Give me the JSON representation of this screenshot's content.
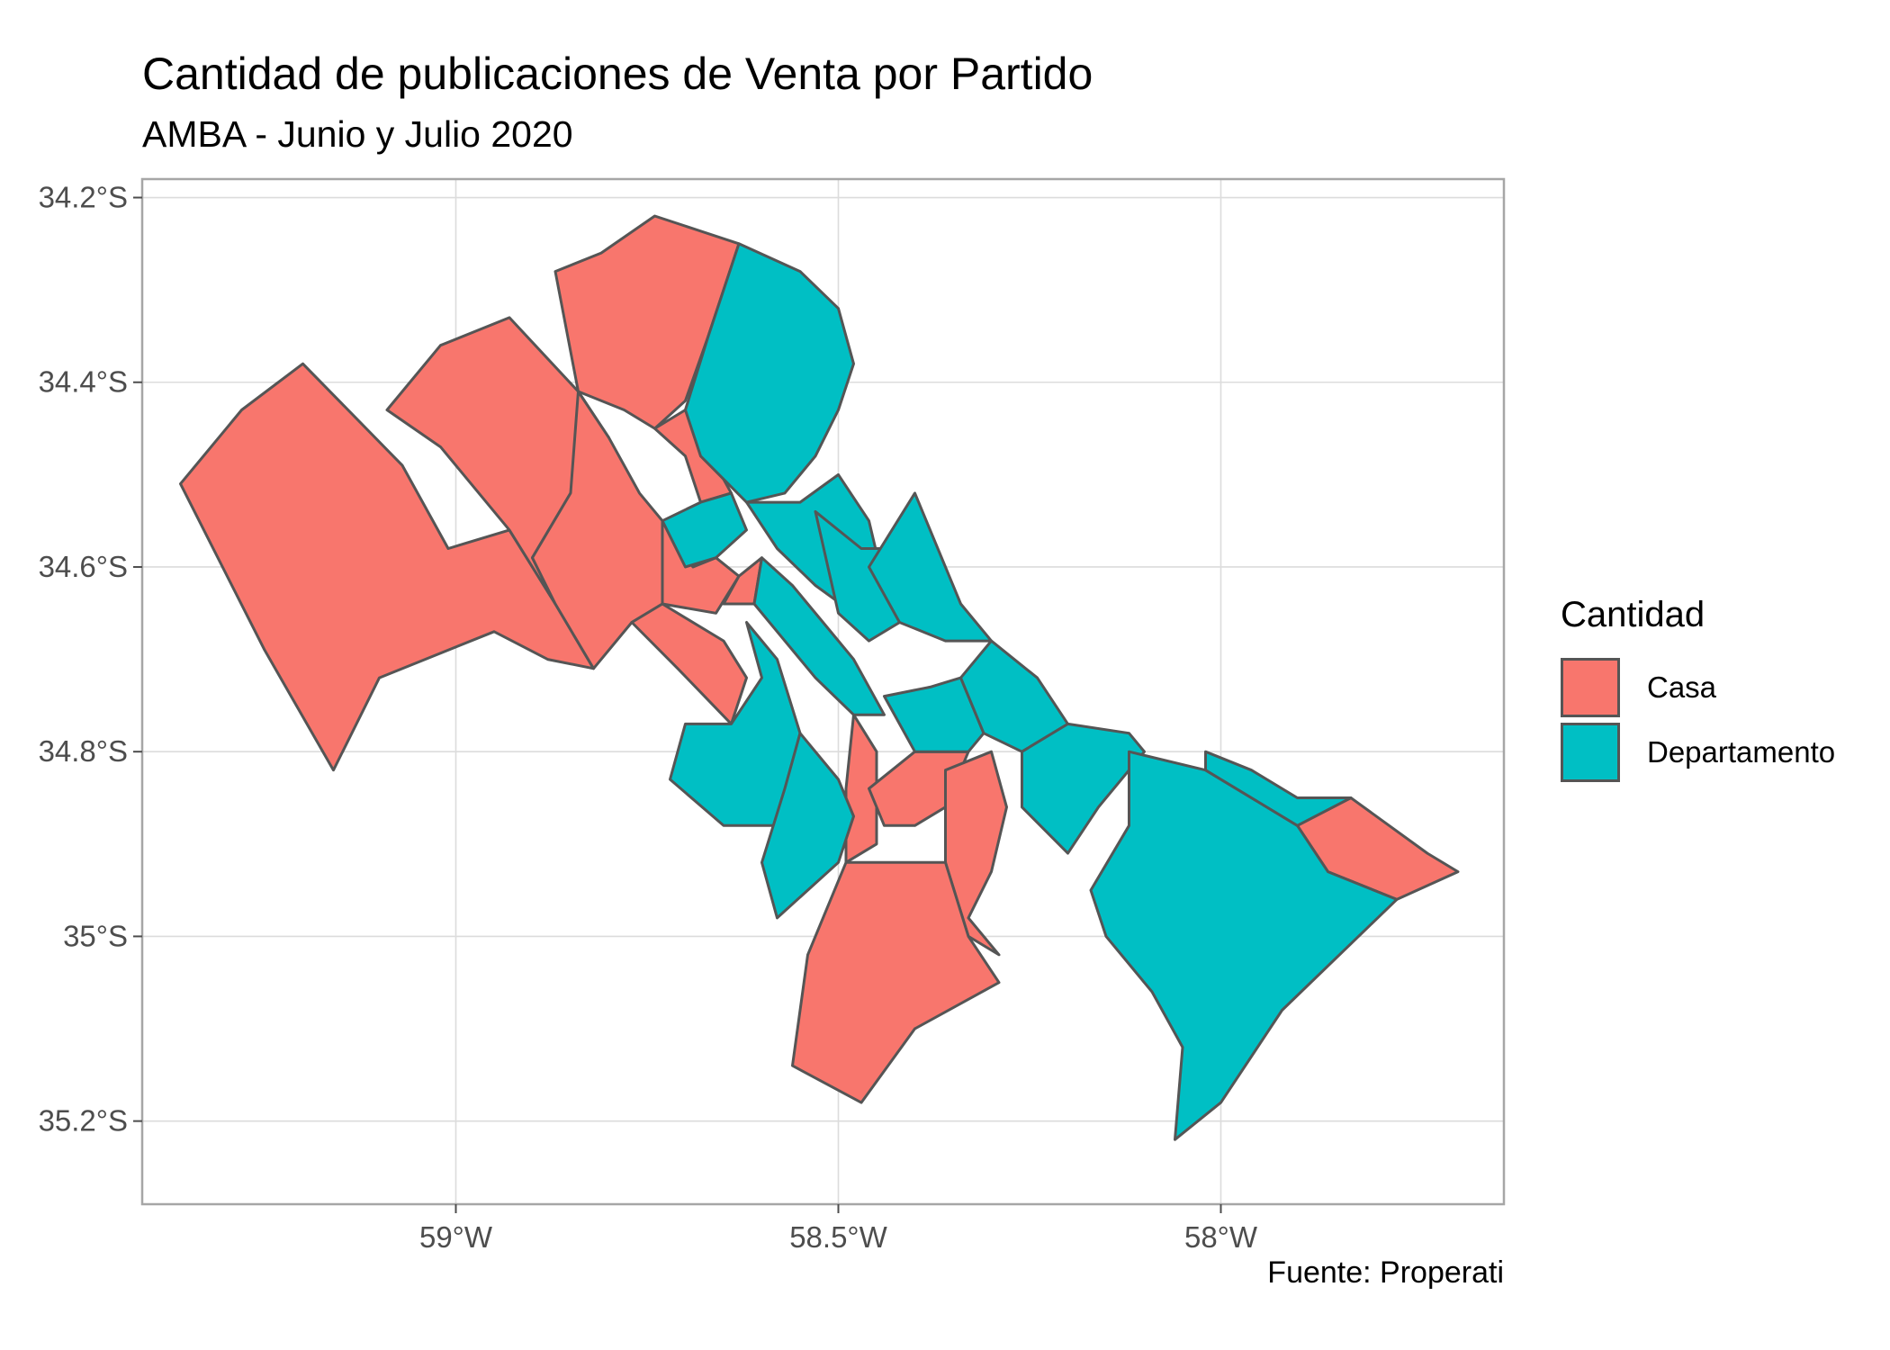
{
  "title": "Cantidad de publicaciones de Venta por Partido",
  "subtitle": "AMBA - Junio y Julio 2020",
  "caption": "Fuente: Properati",
  "axes": {
    "lat_ticks": [
      {
        "value": -34.2,
        "label": "34.2°S"
      },
      {
        "value": -34.4,
        "label": "34.4°S"
      },
      {
        "value": -34.6,
        "label": "34.6°S"
      },
      {
        "value": -34.8,
        "label": "34.8°S"
      },
      {
        "value": -35.0,
        "label": "35°S"
      },
      {
        "value": -35.2,
        "label": "35.2°S"
      }
    ],
    "lon_ticks": [
      {
        "value": -59.0,
        "label": "59°W"
      },
      {
        "value": -58.5,
        "label": "58.5°W"
      },
      {
        "value": -58.0,
        "label": "58°W"
      }
    ],
    "lon_range": [
      -59.41,
      -57.63
    ],
    "lat_range": [
      -35.29,
      -34.18
    ],
    "grid": true
  },
  "legend": {
    "title": "Cantidad",
    "position": "right",
    "items": [
      {
        "key": "Casa",
        "label": "Casa",
        "color": "#F8766D"
      },
      {
        "key": "Departamento",
        "label": "Departamento",
        "color": "#00BFC4"
      }
    ]
  },
  "colors": {
    "Casa": "#F8766D",
    "Departamento": "#00BFC4",
    "border": "#555555",
    "grid": "#dcdcdc",
    "panel_border": "#a6a6a6",
    "tick_text": "#4d4d4d"
  },
  "map_data": {
    "regions": [
      {
        "name": "casa-region",
        "category": "Casa",
        "polygon": [
          [
            -59.2,
            -34.38
          ],
          [
            -59.07,
            -34.49
          ],
          [
            -59.01,
            -34.58
          ],
          [
            -58.93,
            -34.56
          ],
          [
            -58.87,
            -34.64
          ],
          [
            -58.82,
            -34.71
          ],
          [
            -58.88,
            -34.7
          ],
          [
            -58.95,
            -34.67
          ],
          [
            -59.1,
            -34.72
          ],
          [
            -59.16,
            -34.82
          ],
          [
            -59.25,
            -34.69
          ],
          [
            -59.36,
            -34.51
          ],
          [
            -59.28,
            -34.43
          ],
          [
            -59.2,
            -34.38
          ]
        ]
      },
      {
        "name": "casa-region",
        "category": "Casa",
        "polygon": [
          [
            -59.02,
            -34.36
          ],
          [
            -58.93,
            -34.33
          ],
          [
            -58.84,
            -34.41
          ],
          [
            -58.8,
            -34.46
          ],
          [
            -58.85,
            -34.52
          ],
          [
            -58.9,
            -34.59
          ],
          [
            -58.87,
            -34.64
          ],
          [
            -58.93,
            -34.56
          ],
          [
            -59.02,
            -34.47
          ],
          [
            -59.09,
            -34.43
          ],
          [
            -59.02,
            -34.36
          ]
        ]
      },
      {
        "name": "casa-region",
        "category": "Casa",
        "polygon": [
          [
            -58.84,
            -34.41
          ],
          [
            -58.8,
            -34.46
          ],
          [
            -58.76,
            -34.52
          ],
          [
            -58.73,
            -34.55
          ],
          [
            -58.69,
            -34.6
          ],
          [
            -58.73,
            -34.64
          ],
          [
            -58.77,
            -34.66
          ],
          [
            -58.82,
            -34.71
          ],
          [
            -58.87,
            -34.64
          ],
          [
            -58.9,
            -34.59
          ],
          [
            -58.85,
            -34.52
          ],
          [
            -58.84,
            -34.41
          ]
        ]
      },
      {
        "name": "casa-region",
        "category": "Casa",
        "polygon": [
          [
            -58.87,
            -34.28
          ],
          [
            -58.81,
            -34.26
          ],
          [
            -58.74,
            -34.22
          ],
          [
            -58.63,
            -34.25
          ],
          [
            -58.67,
            -34.35
          ],
          [
            -58.7,
            -34.42
          ],
          [
            -58.74,
            -34.45
          ],
          [
            -58.78,
            -34.43
          ],
          [
            -58.84,
            -34.41
          ],
          [
            -58.87,
            -34.28
          ]
        ]
      },
      {
        "name": "casa-region",
        "category": "Casa",
        "polygon": [
          [
            -58.74,
            -34.45
          ],
          [
            -58.7,
            -34.48
          ],
          [
            -58.68,
            -34.53
          ],
          [
            -58.64,
            -34.52
          ],
          [
            -58.7,
            -34.43
          ],
          [
            -58.74,
            -34.45
          ]
        ]
      },
      {
        "name": "casa-region",
        "category": "Casa",
        "polygon": [
          [
            -58.73,
            -34.55
          ],
          [
            -58.69,
            -34.6
          ],
          [
            -58.66,
            -34.59
          ],
          [
            -58.63,
            -34.61
          ],
          [
            -58.66,
            -34.65
          ],
          [
            -58.73,
            -34.64
          ],
          [
            -58.73,
            -34.55
          ]
        ]
      },
      {
        "name": "casa-region",
        "category": "Casa",
        "polygon": [
          [
            -58.77,
            -34.66
          ],
          [
            -58.71,
            -34.71
          ],
          [
            -58.64,
            -34.77
          ],
          [
            -58.62,
            -34.72
          ],
          [
            -58.65,
            -34.68
          ],
          [
            -58.73,
            -34.64
          ],
          [
            -58.77,
            -34.66
          ]
        ]
      },
      {
        "name": "casa-region",
        "category": "Casa",
        "polygon": [
          [
            -58.65,
            -34.64
          ],
          [
            -58.61,
            -34.64
          ],
          [
            -58.6,
            -34.59
          ],
          [
            -58.63,
            -34.61
          ],
          [
            -58.65,
            -34.64
          ]
        ]
      },
      {
        "name": "casa-region",
        "category": "Casa",
        "polygon": [
          [
            -58.48,
            -34.76
          ],
          [
            -58.45,
            -34.8
          ],
          [
            -58.45,
            -34.9
          ],
          [
            -58.49,
            -34.92
          ],
          [
            -58.49,
            -34.84
          ],
          [
            -58.48,
            -34.76
          ]
        ]
      },
      {
        "name": "casa-region",
        "category": "Casa",
        "polygon": [
          [
            -58.46,
            -34.84
          ],
          [
            -58.4,
            -34.8
          ],
          [
            -58.33,
            -34.8
          ],
          [
            -58.36,
            -34.86
          ],
          [
            -58.4,
            -34.88
          ],
          [
            -58.44,
            -34.88
          ],
          [
            -58.46,
            -34.84
          ]
        ]
      },
      {
        "name": "casa-region",
        "category": "Casa",
        "polygon": [
          [
            -58.36,
            -34.82
          ],
          [
            -58.3,
            -34.8
          ],
          [
            -58.28,
            -34.86
          ],
          [
            -58.3,
            -34.93
          ],
          [
            -58.33,
            -34.98
          ],
          [
            -58.29,
            -35.02
          ],
          [
            -58.33,
            -35.0
          ],
          [
            -58.36,
            -34.92
          ],
          [
            -58.36,
            -34.82
          ]
        ]
      },
      {
        "name": "casa-region",
        "category": "Casa",
        "polygon": [
          [
            -58.49,
            -34.92
          ],
          [
            -58.43,
            -34.92
          ],
          [
            -58.36,
            -34.92
          ],
          [
            -58.33,
            -35.0
          ],
          [
            -58.29,
            -35.05
          ],
          [
            -58.4,
            -35.1
          ],
          [
            -58.47,
            -35.18
          ],
          [
            -58.56,
            -35.14
          ],
          [
            -58.54,
            -35.02
          ],
          [
            -58.49,
            -34.92
          ]
        ]
      },
      {
        "name": "casa-region",
        "category": "Casa",
        "polygon": [
          [
            -57.83,
            -34.85
          ],
          [
            -57.73,
            -34.91
          ],
          [
            -57.69,
            -34.93
          ],
          [
            -57.77,
            -34.96
          ],
          [
            -57.86,
            -34.93
          ],
          [
            -57.9,
            -34.88
          ],
          [
            -57.83,
            -34.85
          ]
        ]
      },
      {
        "name": "departamento-region",
        "category": "Departamento",
        "polygon": [
          [
            -58.63,
            -34.25
          ],
          [
            -58.55,
            -34.28
          ],
          [
            -58.5,
            -34.32
          ],
          [
            -58.48,
            -34.38
          ],
          [
            -58.5,
            -34.43
          ],
          [
            -58.53,
            -34.48
          ],
          [
            -58.57,
            -34.52
          ],
          [
            -58.62,
            -34.53
          ],
          [
            -58.68,
            -34.48
          ],
          [
            -58.7,
            -34.43
          ],
          [
            -58.67,
            -34.35
          ],
          [
            -58.63,
            -34.25
          ]
        ]
      },
      {
        "name": "departamento-region",
        "category": "Departamento",
        "polygon": [
          [
            -58.62,
            -34.53
          ],
          [
            -58.55,
            -34.53
          ],
          [
            -58.5,
            -34.5
          ],
          [
            -58.46,
            -34.55
          ],
          [
            -58.44,
            -34.62
          ],
          [
            -58.48,
            -34.65
          ],
          [
            -58.53,
            -34.62
          ],
          [
            -58.58,
            -34.58
          ],
          [
            -58.62,
            -34.53
          ]
        ]
      },
      {
        "name": "departamento-region",
        "category": "Departamento",
        "polygon": [
          [
            -58.64,
            -34.52
          ],
          [
            -58.68,
            -34.53
          ],
          [
            -58.73,
            -34.55
          ],
          [
            -58.7,
            -34.6
          ],
          [
            -58.66,
            -34.59
          ],
          [
            -58.62,
            -34.56
          ],
          [
            -58.64,
            -34.52
          ]
        ]
      },
      {
        "name": "departamento-region",
        "category": "Departamento",
        "polygon": [
          [
            -58.53,
            -34.54
          ],
          [
            -58.47,
            -34.58
          ],
          [
            -58.42,
            -34.58
          ],
          [
            -58.37,
            -34.6
          ],
          [
            -58.4,
            -34.65
          ],
          [
            -58.46,
            -34.68
          ],
          [
            -58.5,
            -34.65
          ],
          [
            -58.53,
            -34.54
          ]
        ]
      },
      {
        "name": "departamento-region",
        "category": "Departamento",
        "polygon": [
          [
            -58.6,
            -34.59
          ],
          [
            -58.56,
            -34.62
          ],
          [
            -58.52,
            -34.66
          ],
          [
            -58.48,
            -34.7
          ],
          [
            -58.44,
            -34.76
          ],
          [
            -58.48,
            -34.76
          ],
          [
            -58.53,
            -34.72
          ],
          [
            -58.58,
            -34.67
          ],
          [
            -58.61,
            -34.64
          ],
          [
            -58.6,
            -34.59
          ]
        ]
      },
      {
        "name": "departamento-region",
        "category": "Departamento",
        "polygon": [
          [
            -58.62,
            -34.66
          ],
          [
            -58.6,
            -34.72
          ],
          [
            -58.64,
            -34.77
          ],
          [
            -58.7,
            -34.77
          ],
          [
            -58.72,
            -34.83
          ],
          [
            -58.65,
            -34.88
          ],
          [
            -58.58,
            -34.88
          ],
          [
            -58.55,
            -34.78
          ],
          [
            -58.58,
            -34.7
          ],
          [
            -58.62,
            -34.66
          ]
        ]
      },
      {
        "name": "departamento-region",
        "category": "Departamento",
        "polygon": [
          [
            -58.55,
            -34.78
          ],
          [
            -58.5,
            -34.83
          ],
          [
            -58.48,
            -34.87
          ],
          [
            -58.5,
            -34.92
          ],
          [
            -58.58,
            -34.98
          ],
          [
            -58.6,
            -34.92
          ],
          [
            -58.57,
            -34.84
          ],
          [
            -58.55,
            -34.78
          ]
        ]
      },
      {
        "name": "departamento-region",
        "category": "Departamento",
        "polygon": [
          [
            -58.44,
            -34.74
          ],
          [
            -58.38,
            -34.73
          ],
          [
            -58.34,
            -34.72
          ],
          [
            -58.31,
            -34.78
          ],
          [
            -58.33,
            -34.8
          ],
          [
            -58.4,
            -34.8
          ],
          [
            -58.44,
            -34.74
          ]
        ]
      },
      {
        "name": "departamento-region",
        "category": "Departamento",
        "polygon": [
          [
            -58.34,
            -34.72
          ],
          [
            -58.3,
            -34.68
          ],
          [
            -58.24,
            -34.72
          ],
          [
            -58.2,
            -34.77
          ],
          [
            -58.26,
            -34.8
          ],
          [
            -58.31,
            -34.78
          ],
          [
            -58.34,
            -34.72
          ]
        ]
      },
      {
        "name": "departamento-region",
        "category": "Departamento",
        "polygon": [
          [
            -58.2,
            -34.77
          ],
          [
            -58.12,
            -34.78
          ],
          [
            -58.1,
            -34.8
          ],
          [
            -58.16,
            -34.86
          ],
          [
            -58.2,
            -34.91
          ],
          [
            -58.26,
            -34.86
          ],
          [
            -58.26,
            -34.8
          ],
          [
            -58.2,
            -34.77
          ]
        ]
      },
      {
        "name": "departamento-region",
        "category": "Departamento",
        "polygon": [
          [
            -58.12,
            -34.8
          ],
          [
            -58.02,
            -34.82
          ],
          [
            -57.9,
            -34.88
          ],
          [
            -57.86,
            -34.93
          ],
          [
            -57.77,
            -34.96
          ],
          [
            -57.92,
            -35.08
          ],
          [
            -58.0,
            -35.18
          ],
          [
            -58.06,
            -35.22
          ],
          [
            -58.05,
            -35.12
          ],
          [
            -58.09,
            -35.06
          ],
          [
            -58.15,
            -35.0
          ],
          [
            -58.17,
            -34.95
          ],
          [
            -58.12,
            -34.88
          ],
          [
            -58.12,
            -34.8
          ]
        ]
      },
      {
        "name": "departamento-region",
        "category": "Departamento",
        "polygon": [
          [
            -58.02,
            -34.8
          ],
          [
            -57.96,
            -34.82
          ],
          [
            -57.9,
            -34.85
          ],
          [
            -57.83,
            -34.85
          ],
          [
            -57.9,
            -34.88
          ],
          [
            -58.02,
            -34.82
          ],
          [
            -58.02,
            -34.8
          ]
        ]
      },
      {
        "name": "departamento-region",
        "category": "Departamento",
        "polygon": [
          [
            -58.4,
            -34.52
          ],
          [
            -58.36,
            -34.6
          ],
          [
            -58.34,
            -34.64
          ],
          [
            -58.3,
            -34.68
          ],
          [
            -58.36,
            -34.68
          ],
          [
            -58.42,
            -34.66
          ],
          [
            -58.46,
            -34.6
          ],
          [
            -58.4,
            -34.52
          ]
        ]
      }
    ]
  }
}
